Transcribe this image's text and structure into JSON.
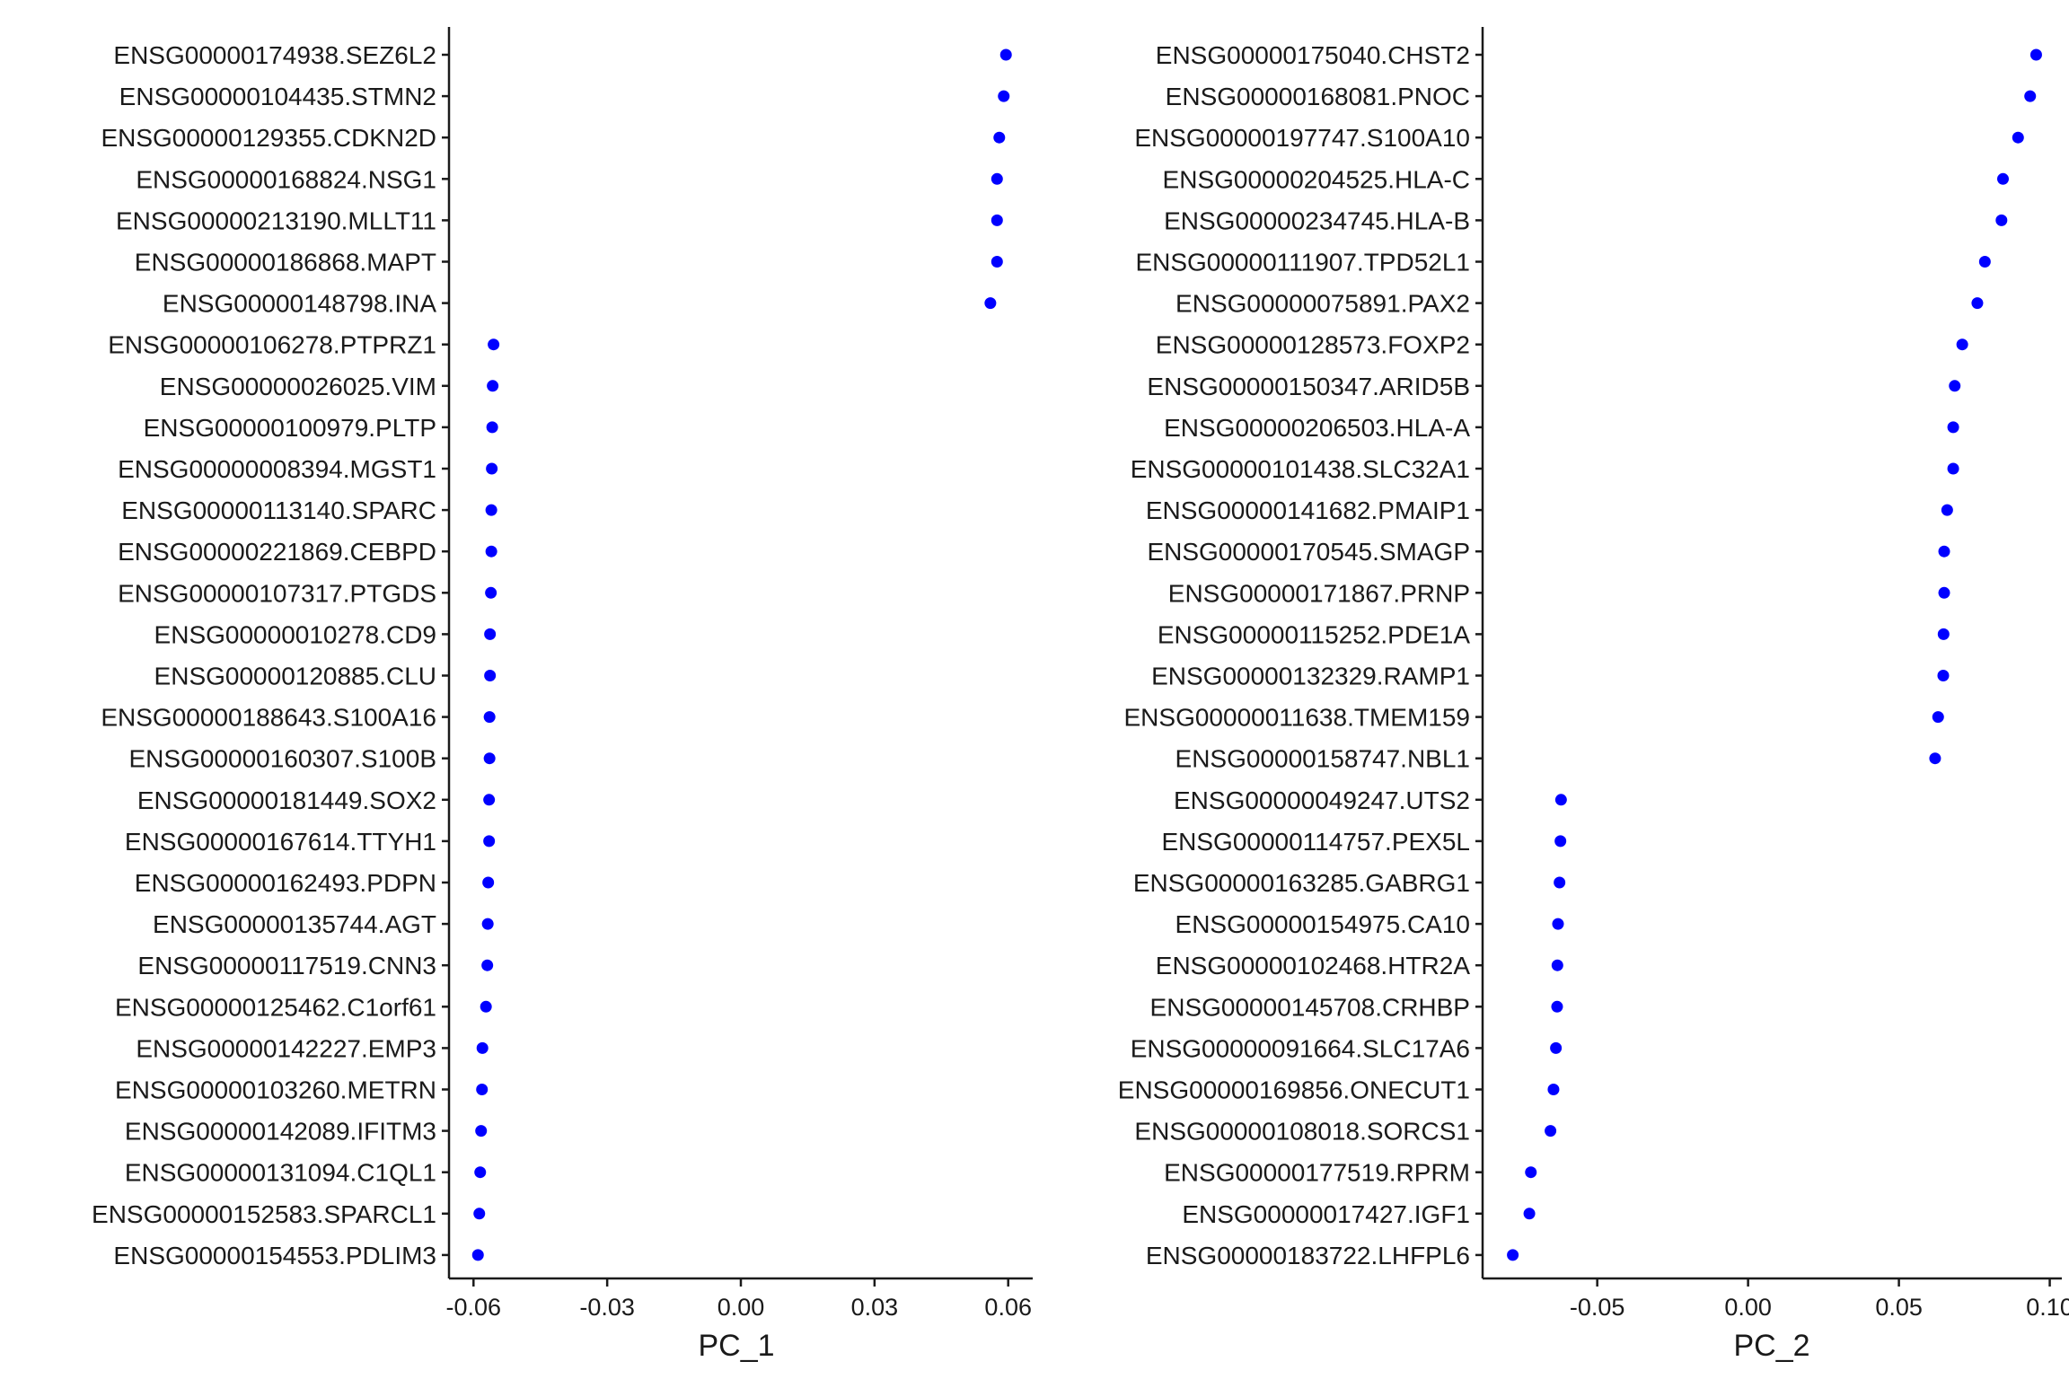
{
  "chart_data": [
    {
      "type": "scatter",
      "xlabel": "PC_1",
      "ylabel": "",
      "xlim": [
        -0.0655,
        0.0655
      ],
      "xticks": [
        -0.06,
        -0.03,
        0.0,
        0.03,
        0.06
      ],
      "xtick_labels": [
        "-0.06",
        "-0.03",
        "0.00",
        "0.03",
        "0.06"
      ],
      "grid": false,
      "point_color": "#0000ff",
      "categories": [
        "ENSG00000174938.SEZ6L2",
        "ENSG00000104435.STMN2",
        "ENSG00000129355.CDKN2D",
        "ENSG00000168824.NSG1",
        "ENSG00000213190.MLLT11",
        "ENSG00000186868.MAPT",
        "ENSG00000148798.INA",
        "ENSG00000106278.PTPRZ1",
        "ENSG00000026025.VIM",
        "ENSG00000100979.PLTP",
        "ENSG00000008394.MGST1",
        "ENSG00000113140.SPARC",
        "ENSG00000221869.CEBPD",
        "ENSG00000107317.PTGDS",
        "ENSG00000010278.CD9",
        "ENSG00000120885.CLU",
        "ENSG00000188643.S100A16",
        "ENSG00000160307.S100B",
        "ENSG00000181449.SOX2",
        "ENSG00000167614.TTYH1",
        "ENSG00000162493.PDPN",
        "ENSG00000135744.AGT",
        "ENSG00000117519.CNN3",
        "ENSG00000125462.C1orf61",
        "ENSG00000142227.EMP3",
        "ENSG00000103260.METRN",
        "ENSG00000142089.IFITM3",
        "ENSG00000131094.C1QL1",
        "ENSG00000152583.SPARCL1",
        "ENSG00000154553.PDLIM3"
      ],
      "values": [
        0.0595,
        0.059,
        0.058,
        0.0575,
        0.0575,
        0.0575,
        0.056,
        -0.0555,
        -0.0557,
        -0.0558,
        -0.0559,
        -0.056,
        -0.056,
        -0.0561,
        -0.0563,
        -0.0563,
        -0.0564,
        -0.0564,
        -0.0565,
        -0.0565,
        -0.0567,
        -0.0568,
        -0.0569,
        -0.0572,
        -0.058,
        -0.0581,
        -0.0583,
        -0.0585,
        -0.0587,
        -0.059
      ]
    },
    {
      "type": "scatter",
      "xlabel": "PC_2",
      "ylabel": "",
      "xlim": [
        -0.088,
        0.104
      ],
      "xticks": [
        -0.05,
        0.0,
        0.05,
        0.1
      ],
      "xtick_labels": [
        "-0.05",
        "0.00",
        "0.05",
        "0.10"
      ],
      "grid": false,
      "point_color": "#0000ff",
      "categories": [
        "ENSG00000175040.CHST2",
        "ENSG00000168081.PNOC",
        "ENSG00000197747.S100A10",
        "ENSG00000204525.HLA-C",
        "ENSG00000234745.HLA-B",
        "ENSG00000111907.TPD52L1",
        "ENSG00000075891.PAX2",
        "ENSG00000128573.FOXP2",
        "ENSG00000150347.ARID5B",
        "ENSG00000206503.HLA-A",
        "ENSG00000101438.SLC32A1",
        "ENSG00000141682.PMAIP1",
        "ENSG00000170545.SMAGP",
        "ENSG00000171867.PRNP",
        "ENSG00000115252.PDE1A",
        "ENSG00000132329.RAMP1",
        "ENSG00000011638.TMEM159",
        "ENSG00000158747.NBL1",
        "ENSG00000049247.UTS2",
        "ENSG00000114757.PEX5L",
        "ENSG00000163285.GABRG1",
        "ENSG00000154975.CA10",
        "ENSG00000102468.HTR2A",
        "ENSG00000145708.CRHBP",
        "ENSG00000091664.SLC17A6",
        "ENSG00000169856.ONECUT1",
        "ENSG00000108018.SORCS1",
        "ENSG00000177519.RPRM",
        "ENSG00000017427.IGF1",
        "ENSG00000183722.LHFPL6"
      ],
      "values": [
        0.0955,
        0.0935,
        0.0895,
        0.0845,
        0.084,
        0.0785,
        0.076,
        0.071,
        0.0685,
        0.068,
        0.068,
        0.066,
        0.065,
        0.065,
        0.0648,
        0.0647,
        0.063,
        0.062,
        -0.062,
        -0.0622,
        -0.0625,
        -0.063,
        -0.0632,
        -0.0633,
        -0.0637,
        -0.0645,
        -0.0655,
        -0.072,
        -0.0725,
        -0.078
      ]
    }
  ]
}
